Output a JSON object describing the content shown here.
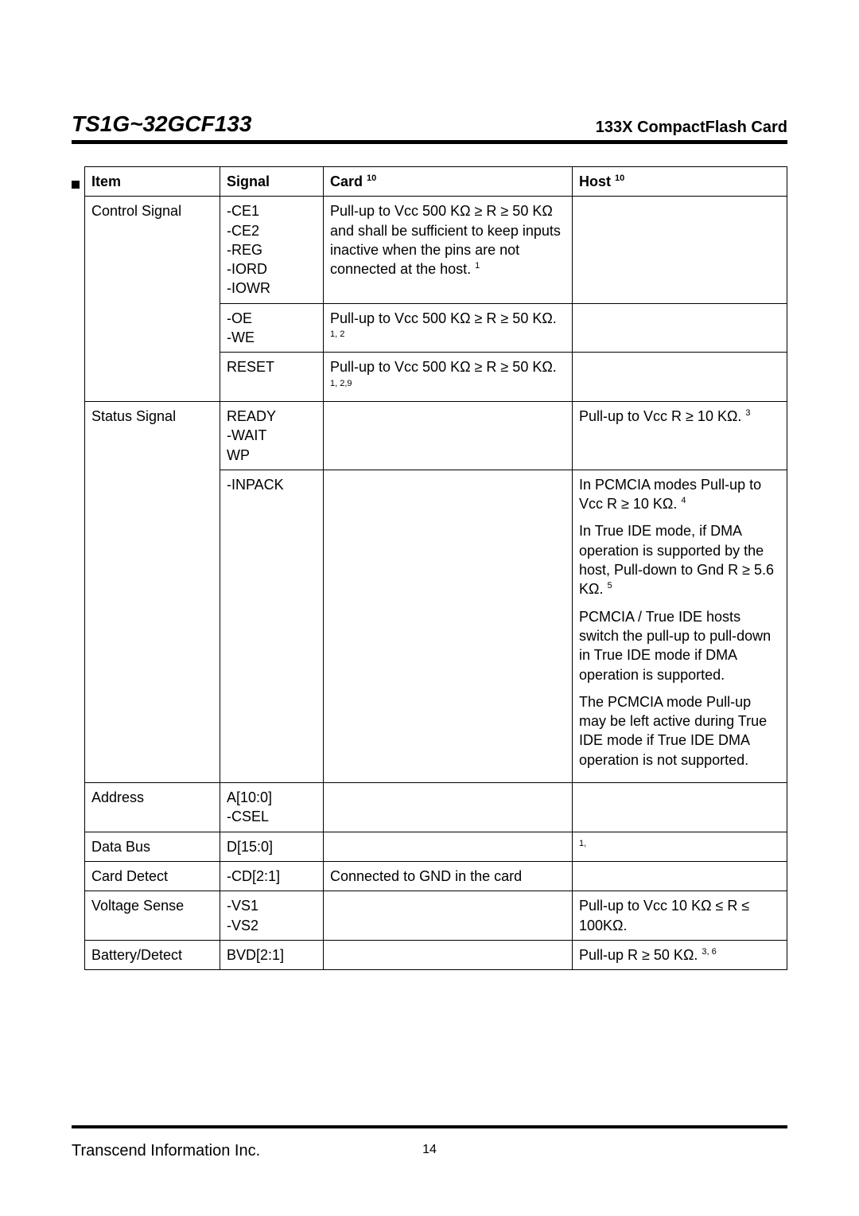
{
  "header": {
    "title": "TS1G~32GCF133",
    "subtitle": "133X CompactFlash Card"
  },
  "footer": {
    "company": "Transcend Information Inc.",
    "pageNumber": "14"
  },
  "table": {
    "columns": {
      "item": "Item",
      "signal": "Signal",
      "card": "Card",
      "card_sup": "10",
      "host": "Host",
      "host_sup": "10"
    },
    "rows": [
      {
        "item": "Control Signal",
        "groups": [
          {
            "signals": "-CE1\n-CE2\n-REG\n-IORD\n-IOWR",
            "card": "Pull-up to Vcc 500 KΩ ≥ R ≥ 50 KΩ and shall be sufficient to keep inputs inactive when the pins are not connected at the host.",
            "card_sup": "1",
            "host": ""
          },
          {
            "signals": "-OE\n-WE",
            "card": "Pull-up to Vcc 500 KΩ ≥ R ≥ 50 KΩ.",
            "card_sup": "1, 2",
            "host": ""
          },
          {
            "signals": "RESET",
            "card": "Pull-up to Vcc 500 KΩ ≥ R ≥ 50 KΩ.",
            "card_sup": "1, 2,9",
            "host": ""
          }
        ]
      },
      {
        "item": "Status Signal",
        "groups": [
          {
            "signals": "READY\n-WAIT\nWP",
            "card": "",
            "host": "Pull-up to Vcc R ≥ 10 KΩ.",
            "host_sup": "3"
          },
          {
            "signals": "-INPACK",
            "card": "",
            "host_paras": [
              {
                "text": "In PCMCIA modes Pull-up to Vcc R ≥ 10 KΩ.",
                "sup": "4"
              },
              {
                "text": "In True IDE mode, if DMA operation is supported by the host, Pull-down to Gnd R ≥ 5.6 KΩ.",
                "sup": "5"
              },
              {
                "text": "PCMCIA / True IDE hosts switch the pull-up to pull-down in True IDE mode if DMA operation is supported."
              },
              {
                "text": "The PCMCIA mode Pull-up may be left active during True IDE mode if True IDE DMA operation is not supported."
              }
            ]
          }
        ]
      },
      {
        "item": "Address",
        "groups": [
          {
            "signals": "A[10:0]\n-CSEL",
            "card": "",
            "host": ""
          }
        ]
      },
      {
        "item": "Data Bus",
        "groups": [
          {
            "signals": "D[15:0]",
            "card": "",
            "host": "",
            "host_sup": "1,"
          }
        ]
      },
      {
        "item": "Card Detect",
        "groups": [
          {
            "signals": "-CD[2:1]",
            "card": "Connected to GND in the card",
            "host": ""
          }
        ]
      },
      {
        "item": "Voltage Sense",
        "groups": [
          {
            "signals": "-VS1\n-VS2",
            "card": "",
            "host": "Pull-up to Vcc 10 KΩ ≤ R ≤ 100KΩ."
          }
        ]
      },
      {
        "item": "Battery/Detect",
        "groups": [
          {
            "signals": "BVD[2:1]",
            "card": "",
            "host": "Pull-up R ≥ 50 KΩ.",
            "host_sup": "3, 6"
          }
        ]
      }
    ]
  }
}
